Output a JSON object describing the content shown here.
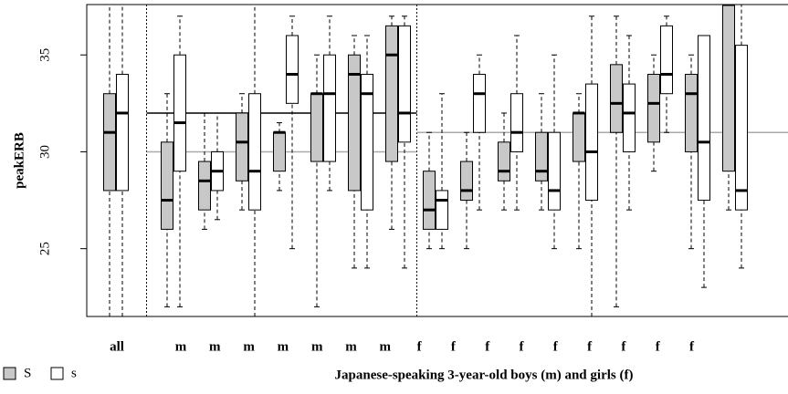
{
  "chart_data": {
    "type": "boxplot",
    "y_label": "peakERB",
    "x_label": "Japanese-speaking 3-year-old boys (m) and girls (f)",
    "categories": [
      "all",
      "m",
      "m",
      "m",
      "m",
      "m",
      "m",
      "m",
      "f",
      "f",
      "f",
      "f",
      "f",
      "f",
      "f",
      "f",
      "f"
    ],
    "ylim": [
      21.5,
      37.6
    ],
    "yticks": [
      25,
      30,
      35
    ],
    "series": [
      {
        "name": "S",
        "color": "#c8c8c8",
        "boxes": [
          {
            "low": 21.5,
            "q1": 28,
            "median": 31,
            "q3": 33,
            "high": 37.6
          },
          {
            "low": 22,
            "q1": 26,
            "median": 27.5,
            "q3": 30.5,
            "high": 33
          },
          {
            "low": 26,
            "q1": 27,
            "median": 28.5,
            "q3": 29.5,
            "high": 32
          },
          {
            "low": 27,
            "q1": 28.5,
            "median": 30.5,
            "q3": 32,
            "high": 33
          },
          {
            "low": 28,
            "q1": 29,
            "median": 31,
            "q3": 31,
            "high": 31.5
          },
          {
            "low": 22,
            "q1": 29.5,
            "median": 33,
            "q3": 33,
            "high": 35
          },
          {
            "low": 24,
            "q1": 28,
            "median": 34,
            "q3": 35,
            "high": 36
          },
          {
            "low": 26,
            "q1": 29.5,
            "median": 35,
            "q3": 36.5,
            "high": 37
          },
          {
            "low": 25,
            "q1": 26,
            "median": 27,
            "q3": 29,
            "high": 31
          },
          {
            "low": 25,
            "q1": 27.5,
            "median": 28,
            "q3": 29.5,
            "high": 31
          },
          {
            "low": 27,
            "q1": 28.5,
            "median": 29,
            "q3": 30.5,
            "high": 32
          },
          {
            "low": 27,
            "q1": 28.5,
            "median": 29,
            "q3": 31,
            "high": 33
          },
          {
            "low": 25,
            "q1": 29.5,
            "median": 32,
            "q3": 32,
            "high": 33
          },
          {
            "low": 22,
            "q1": 31,
            "median": 32.5,
            "q3": 34.5,
            "high": 37
          },
          {
            "low": 29,
            "q1": 30.5,
            "median": 32.5,
            "q3": 34,
            "high": 35
          },
          {
            "low": 25,
            "q1": 30,
            "median": 33,
            "q3": 34,
            "high": 35
          },
          {
            "low": 27,
            "q1": 29,
            "median": 37.6,
            "q3": 37.6,
            "high": 37.6
          }
        ]
      },
      {
        "name": "s",
        "color": "#ffffff",
        "boxes": [
          {
            "low": 21.5,
            "q1": 28,
            "median": 32,
            "q3": 34,
            "high": 37.6
          },
          {
            "low": 22,
            "q1": 29,
            "median": 31.5,
            "q3": 35,
            "high": 37
          },
          {
            "low": 26.5,
            "q1": 28,
            "median": 29,
            "q3": 30,
            "high": 32
          },
          {
            "low": 21.5,
            "q1": 27,
            "median": 29,
            "q3": 33,
            "high": 37.6
          },
          {
            "low": 25,
            "q1": 32.5,
            "median": 34,
            "q3": 36,
            "high": 37
          },
          {
            "low": 28,
            "q1": 29.5,
            "median": 33,
            "q3": 35,
            "high": 37
          },
          {
            "low": 24,
            "q1": 27,
            "median": 33,
            "q3": 34,
            "high": 36
          },
          {
            "low": 24,
            "q1": 30.5,
            "median": 32,
            "q3": 36.5,
            "high": 37
          },
          {
            "low": 25,
            "q1": 26,
            "median": 27.5,
            "q3": 28,
            "high": 33
          },
          {
            "low": 27,
            "q1": 31,
            "median": 33,
            "q3": 34,
            "high": 35
          },
          {
            "low": 27,
            "q1": 30,
            "median": 31,
            "q3": 33,
            "high": 36
          },
          {
            "low": 25,
            "q1": 27,
            "median": 28,
            "q3": 31,
            "high": 35
          },
          {
            "low": 21.5,
            "q1": 27.5,
            "median": 30,
            "q3": 33.5,
            "high": 37
          },
          {
            "low": 27,
            "q1": 30,
            "median": 32,
            "q3": 33.5,
            "high": 36
          },
          {
            "low": 31,
            "q1": 33,
            "median": 34,
            "q3": 36.5,
            "high": 37
          },
          {
            "low": 23,
            "q1": 27.5,
            "median": 30.5,
            "q3": 36,
            "high": 36
          },
          {
            "low": 24,
            "q1": 27,
            "median": 28,
            "q3": 35.5,
            "high": 37.6
          }
        ]
      }
    ],
    "group_lines": [
      {
        "group": "m",
        "value": 32,
        "color": "#000000"
      },
      {
        "group": "m",
        "value": 30,
        "color": "#aaaaaa"
      },
      {
        "group": "f",
        "value": 31,
        "color": "#aaaaaa"
      }
    ]
  }
}
